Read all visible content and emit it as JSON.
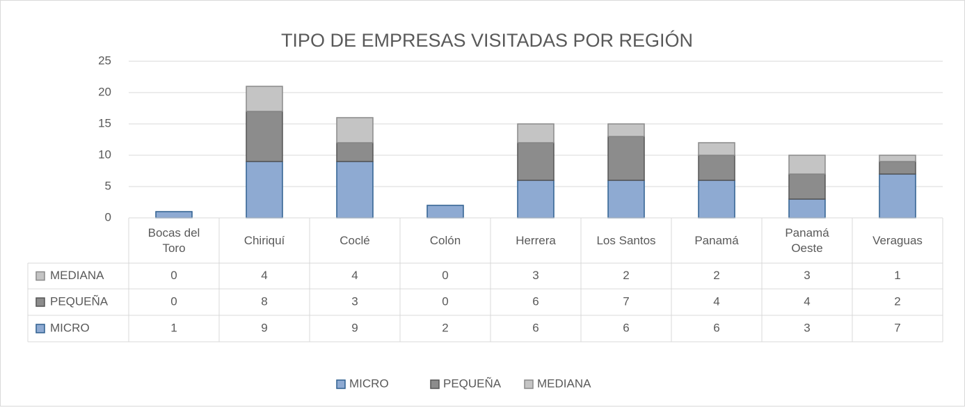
{
  "chart_data": {
    "type": "bar",
    "stacked": true,
    "title": "TIPO DE EMPRESAS VISITADAS POR REGIÓN",
    "categories": [
      "Bocas del Toro",
      "Chiriquí",
      "Coclé",
      "Colón",
      "Herrera",
      "Los Santos",
      "Panamá",
      "Panamá Oeste",
      "Veraguas"
    ],
    "series": [
      {
        "name": "MICRO",
        "color": "#8eaad2",
        "stroke": "#2f5f8f",
        "values": [
          1,
          9,
          9,
          2,
          6,
          6,
          6,
          3,
          7
        ]
      },
      {
        "name": "PEQUEÑA",
        "color": "#8c8c8c",
        "stroke": "#555555",
        "values": [
          0,
          8,
          3,
          0,
          6,
          7,
          4,
          4,
          2
        ]
      },
      {
        "name": "MEDIANA",
        "color": "#c4c4c4",
        "stroke": "#8a8a8a",
        "values": [
          0,
          4,
          4,
          0,
          3,
          2,
          2,
          3,
          1
        ]
      }
    ],
    "ylim": [
      0,
      25
    ],
    "yticks": [
      0,
      5,
      10,
      15,
      20,
      25
    ],
    "grid": true,
    "legend": "bottom",
    "data_table": true
  }
}
